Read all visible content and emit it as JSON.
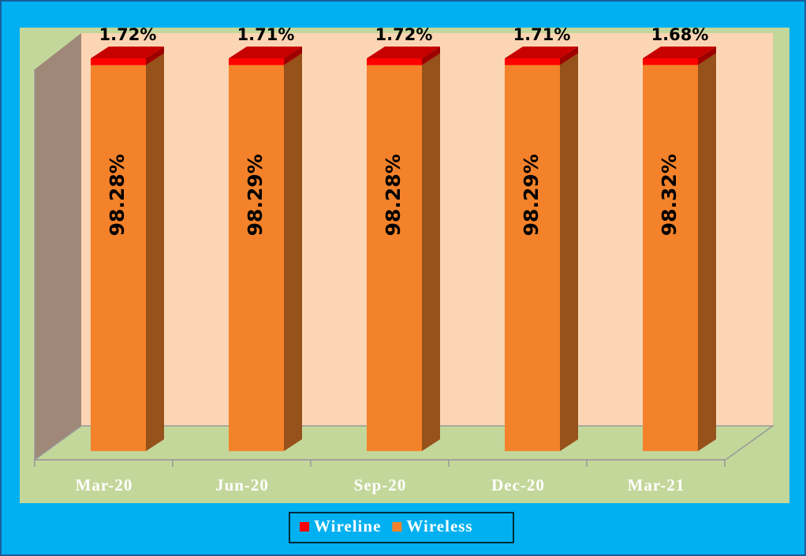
{
  "chart_data": {
    "type": "bar3d_stacked",
    "categories": [
      "Mar-20",
      "Jun-20",
      "Sep-20",
      "Dec-20",
      "Mar-21"
    ],
    "series": [
      {
        "name": "Wireline",
        "color": "#ff0000",
        "values": [
          1.72,
          1.71,
          1.72,
          1.71,
          1.68
        ],
        "value_labels": [
          "1.72%",
          "1.71%",
          "1.72%",
          "1.71%",
          "1.68%"
        ]
      },
      {
        "name": "Wireless",
        "color": "#f4822a",
        "values": [
          98.28,
          98.29,
          98.28,
          98.29,
          98.32
        ],
        "value_labels": [
          "98.28%",
          "98.29%",
          "98.28%",
          "98.29%",
          "98.32%"
        ]
      }
    ],
    "ylim": [
      0,
      100
    ],
    "legend": "bottom"
  }
}
